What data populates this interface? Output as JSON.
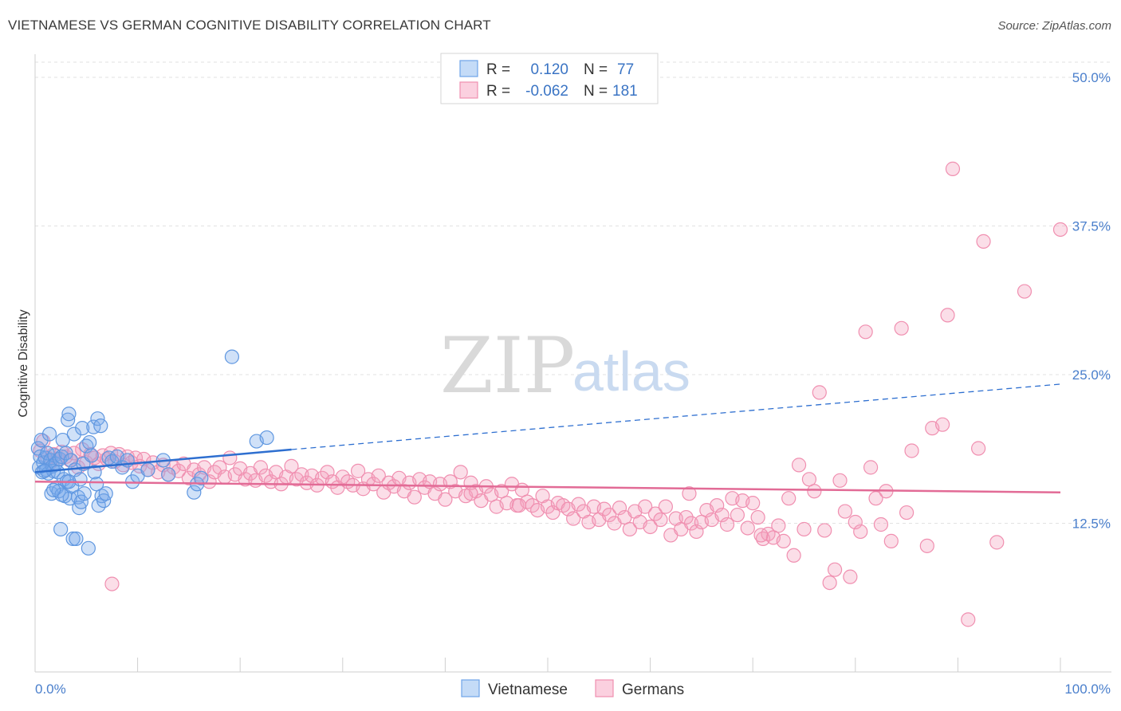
{
  "title": "VIETNAMESE VS GERMAN COGNITIVE DISABILITY CORRELATION CHART",
  "source": "Source: ZipAtlas.com",
  "watermark": {
    "zip": "ZIP",
    "atlas": "atlas"
  },
  "colors": {
    "blue": "#6ea3e8",
    "blue_line": "#2e6fd0",
    "pink": "#f08fb0",
    "pink_line": "#e26b96",
    "tick": "#4a7fcc"
  },
  "legend": {
    "rows": [
      {
        "r_label": "R =",
        "r_value": "0.120",
        "n_label": "N =",
        "n_value": "77"
      },
      {
        "r_label": "R =",
        "r_value": "-0.062",
        "n_label": "N =",
        "n_value": "181"
      }
    ]
  },
  "chart_data": {
    "type": "scatter",
    "ylabel": "Cognitive Disability",
    "xlim": [
      0,
      100
    ],
    "ylim": [
      0,
      50
    ],
    "y_ticks": [
      {
        "value": 12.5,
        "label": "12.5%"
      },
      {
        "value": 25.0,
        "label": "25.0%"
      },
      {
        "value": 37.5,
        "label": "37.5%"
      },
      {
        "value": 50.0,
        "label": "50.0%"
      }
    ],
    "x_ticks": [
      {
        "value": 0,
        "label": "0.0%"
      },
      {
        "value": 100,
        "label": "100.0%"
      }
    ],
    "legend_position": "bottom",
    "grid": true,
    "series": [
      {
        "name": "Vietnamese",
        "r": 0.12,
        "n": 77,
        "trend": {
          "x0": 0,
          "y0": 16.8,
          "x1": 25,
          "y1": 18.7,
          "dash_x1": 100,
          "dash_y1": 24.2
        },
        "points": [
          [
            0.3,
            18.8
          ],
          [
            0.4,
            17.2
          ],
          [
            0.5,
            18.1
          ],
          [
            0.6,
            19.5
          ],
          [
            0.7,
            16.8
          ],
          [
            0.8,
            17.6
          ],
          [
            1.0,
            18.0
          ],
          [
            1.1,
            17.0
          ],
          [
            1.2,
            18.4
          ],
          [
            1.3,
            16.7
          ],
          [
            1.4,
            20.0
          ],
          [
            1.5,
            17.8
          ],
          [
            1.6,
            15.0
          ],
          [
            1.7,
            17.3
          ],
          [
            1.8,
            16.9
          ],
          [
            1.9,
            18.2
          ],
          [
            2.0,
            17.5
          ],
          [
            2.1,
            15.5
          ],
          [
            2.2,
            16.8
          ],
          [
            2.3,
            15.2
          ],
          [
            2.4,
            17.9
          ],
          [
            2.5,
            12.0
          ],
          [
            2.6,
            18.1
          ],
          [
            2.7,
            19.5
          ],
          [
            2.8,
            16.2
          ],
          [
            2.9,
            14.8
          ],
          [
            3.0,
            18.4
          ],
          [
            3.1,
            16.0
          ],
          [
            3.2,
            21.2
          ],
          [
            3.3,
            21.7
          ],
          [
            3.4,
            14.6
          ],
          [
            3.5,
            17.8
          ],
          [
            3.6,
            15.6
          ],
          [
            3.7,
            11.2
          ],
          [
            3.8,
            20.0
          ],
          [
            3.9,
            17.0
          ],
          [
            4.0,
            11.2
          ],
          [
            4.2,
            14.7
          ],
          [
            4.3,
            13.8
          ],
          [
            4.4,
            16.2
          ],
          [
            4.5,
            14.3
          ],
          [
            4.6,
            20.5
          ],
          [
            4.7,
            17.5
          ],
          [
            4.8,
            15.0
          ],
          [
            5.0,
            19.0
          ],
          [
            5.2,
            10.4
          ],
          [
            5.3,
            19.3
          ],
          [
            5.5,
            18.2
          ],
          [
            5.7,
            20.6
          ],
          [
            5.8,
            16.8
          ],
          [
            6.0,
            15.8
          ],
          [
            6.1,
            21.3
          ],
          [
            6.2,
            14.0
          ],
          [
            6.4,
            20.7
          ],
          [
            6.5,
            14.8
          ],
          [
            6.7,
            14.4
          ],
          [
            6.9,
            15.0
          ],
          [
            7.2,
            18.0
          ],
          [
            7.5,
            17.7
          ],
          [
            8.0,
            18.1
          ],
          [
            8.5,
            17.2
          ],
          [
            9.0,
            17.8
          ],
          [
            9.5,
            16.0
          ],
          [
            10.0,
            16.5
          ],
          [
            11.0,
            17.0
          ],
          [
            12.5,
            17.8
          ],
          [
            13.0,
            16.6
          ],
          [
            15.5,
            15.1
          ],
          [
            15.8,
            15.8
          ],
          [
            16.2,
            16.3
          ],
          [
            19.2,
            26.5
          ],
          [
            21.6,
            19.4
          ],
          [
            22.6,
            19.7
          ],
          [
            3.3,
            16.0
          ],
          [
            2.6,
            14.9
          ],
          [
            1.8,
            15.3
          ],
          [
            0.9,
            16.9
          ]
        ]
      },
      {
        "name": "Germans",
        "r": -0.062,
        "n": 181,
        "trend": {
          "x0": 0,
          "y0": 16.0,
          "x1": 100,
          "y1": 15.1
        },
        "points": [
          [
            0.5,
            18.6
          ],
          [
            0.8,
            19.4
          ],
          [
            1.2,
            18.0
          ],
          [
            1.5,
            17.6
          ],
          [
            1.8,
            18.3
          ],
          [
            2.2,
            17.9
          ],
          [
            2.6,
            18.5
          ],
          [
            3.0,
            18.1
          ],
          [
            3.4,
            17.8
          ],
          [
            3.8,
            18.4
          ],
          [
            4.2,
            17.2
          ],
          [
            4.6,
            18.7
          ],
          [
            5.0,
            17.6
          ],
          [
            5.4,
            18.3
          ],
          [
            5.8,
            18.0
          ],
          [
            6.2,
            17.5
          ],
          [
            6.6,
            18.2
          ],
          [
            7.0,
            17.9
          ],
          [
            7.4,
            18.4
          ],
          [
            7.8,
            17.7
          ],
          [
            8.2,
            18.3
          ],
          [
            8.6,
            17.4
          ],
          [
            9.0,
            18.1
          ],
          [
            9.4,
            17.6
          ],
          [
            9.8,
            18.0
          ],
          [
            10.2,
            17.3
          ],
          [
            10.6,
            17.9
          ],
          [
            11.0,
            17.0
          ],
          [
            11.5,
            17.6
          ],
          [
            12.0,
            16.8
          ],
          [
            12.5,
            17.4
          ],
          [
            13.0,
            16.6
          ],
          [
            13.5,
            17.2
          ],
          [
            14.0,
            16.9
          ],
          [
            14.5,
            17.5
          ],
          [
            15.0,
            16.3
          ],
          [
            15.5,
            17.0
          ],
          [
            16.0,
            16.6
          ],
          [
            16.5,
            17.2
          ],
          [
            17.0,
            16.0
          ],
          [
            17.5,
            16.8
          ],
          [
            18.0,
            17.2
          ],
          [
            18.5,
            16.4
          ],
          [
            19.0,
            18.0
          ],
          [
            19.5,
            16.6
          ],
          [
            20.0,
            17.1
          ],
          [
            20.5,
            16.2
          ],
          [
            21.0,
            16.7
          ],
          [
            21.5,
            16.1
          ],
          [
            22.0,
            17.2
          ],
          [
            22.5,
            16.5
          ],
          [
            23.0,
            16.0
          ],
          [
            23.5,
            16.8
          ],
          [
            24.0,
            15.8
          ],
          [
            24.5,
            16.4
          ],
          [
            25.0,
            17.3
          ],
          [
            25.5,
            16.2
          ],
          [
            26.0,
            16.6
          ],
          [
            26.5,
            15.9
          ],
          [
            27.0,
            16.5
          ],
          [
            27.5,
            15.7
          ],
          [
            28.0,
            16.3
          ],
          [
            28.5,
            16.8
          ],
          [
            29.0,
            16.0
          ],
          [
            29.5,
            15.5
          ],
          [
            30.0,
            16.4
          ],
          [
            30.5,
            16.0
          ],
          [
            31.0,
            15.7
          ],
          [
            31.5,
            16.9
          ],
          [
            32.0,
            15.4
          ],
          [
            32.5,
            16.2
          ],
          [
            33.0,
            15.8
          ],
          [
            33.5,
            16.5
          ],
          [
            34.0,
            15.1
          ],
          [
            34.5,
            15.9
          ],
          [
            35.0,
            15.6
          ],
          [
            35.5,
            16.3
          ],
          [
            36.0,
            15.2
          ],
          [
            36.5,
            15.9
          ],
          [
            37.0,
            14.7
          ],
          [
            37.5,
            16.2
          ],
          [
            38.0,
            15.5
          ],
          [
            38.5,
            16.0
          ],
          [
            39.0,
            15.0
          ],
          [
            39.5,
            15.8
          ],
          [
            40.0,
            14.5
          ],
          [
            40.5,
            16.0
          ],
          [
            41.0,
            15.2
          ],
          [
            41.5,
            16.8
          ],
          [
            42.0,
            14.8
          ],
          [
            42.5,
            15.9
          ],
          [
            43.0,
            15.2
          ],
          [
            43.5,
            14.4
          ],
          [
            44.0,
            15.6
          ],
          [
            44.5,
            14.9
          ],
          [
            45.0,
            13.9
          ],
          [
            45.5,
            15.2
          ],
          [
            46.0,
            14.2
          ],
          [
            46.5,
            15.8
          ],
          [
            47.0,
            14.0
          ],
          [
            47.5,
            15.3
          ],
          [
            48.0,
            14.3
          ],
          [
            48.5,
            14.0
          ],
          [
            49.0,
            13.6
          ],
          [
            49.5,
            14.8
          ],
          [
            50.0,
            13.9
          ],
          [
            50.5,
            13.4
          ],
          [
            51.0,
            14.2
          ],
          [
            51.5,
            14.0
          ],
          [
            52.0,
            13.7
          ],
          [
            52.5,
            12.9
          ],
          [
            53.0,
            14.1
          ],
          [
            53.5,
            13.5
          ],
          [
            54.0,
            12.6
          ],
          [
            54.5,
            13.9
          ],
          [
            55.0,
            12.8
          ],
          [
            55.5,
            13.7
          ],
          [
            56.0,
            13.2
          ],
          [
            56.5,
            12.5
          ],
          [
            57.0,
            13.8
          ],
          [
            57.5,
            13.0
          ],
          [
            58.0,
            12.0
          ],
          [
            58.5,
            13.5
          ],
          [
            59.0,
            12.6
          ],
          [
            59.5,
            13.9
          ],
          [
            60.0,
            12.2
          ],
          [
            60.5,
            13.3
          ],
          [
            61.0,
            12.8
          ],
          [
            61.5,
            13.9
          ],
          [
            62.0,
            11.5
          ],
          [
            62.5,
            12.9
          ],
          [
            63.0,
            12.0
          ],
          [
            63.5,
            13.0
          ],
          [
            64.0,
            12.5
          ],
          [
            64.5,
            11.8
          ],
          [
            65.0,
            12.6
          ],
          [
            65.5,
            13.6
          ],
          [
            66.0,
            12.8
          ],
          [
            66.5,
            14.0
          ],
          [
            67.0,
            13.2
          ],
          [
            67.5,
            12.4
          ],
          [
            68.0,
            14.6
          ],
          [
            68.5,
            13.2
          ],
          [
            69.0,
            14.4
          ],
          [
            69.5,
            12.1
          ],
          [
            70.0,
            14.2
          ],
          [
            70.5,
            13.0
          ],
          [
            71.0,
            11.2
          ],
          [
            71.5,
            11.6
          ],
          [
            72.0,
            11.3
          ],
          [
            72.5,
            12.3
          ],
          [
            73.0,
            11.0
          ],
          [
            73.5,
            14.6
          ],
          [
            74.0,
            9.8
          ],
          [
            74.5,
            17.4
          ],
          [
            75.0,
            12.0
          ],
          [
            75.5,
            16.2
          ],
          [
            76.0,
            15.2
          ],
          [
            76.5,
            23.5
          ],
          [
            77.0,
            11.9
          ],
          [
            77.5,
            7.5
          ],
          [
            78.0,
            8.6
          ],
          [
            78.5,
            16.1
          ],
          [
            79.0,
            13.5
          ],
          [
            79.5,
            8.0
          ],
          [
            80.0,
            12.6
          ],
          [
            80.5,
            11.8
          ],
          [
            81.0,
            28.6
          ],
          [
            81.5,
            17.2
          ],
          [
            82.0,
            14.6
          ],
          [
            82.5,
            12.4
          ],
          [
            83.0,
            15.2
          ],
          [
            83.5,
            11.0
          ],
          [
            84.5,
            28.9
          ],
          [
            85.0,
            13.4
          ],
          [
            85.5,
            18.6
          ],
          [
            87.0,
            10.6
          ],
          [
            87.5,
            20.5
          ],
          [
            88.5,
            20.8
          ],
          [
            89.0,
            30.0
          ],
          [
            89.5,
            42.3
          ],
          [
            91.0,
            4.4
          ],
          [
            92.0,
            18.8
          ],
          [
            92.5,
            36.2
          ],
          [
            93.8,
            10.9
          ],
          [
            96.5,
            32.0
          ],
          [
            100.0,
            37.2
          ],
          [
            70.8,
            11.5
          ],
          [
            63.8,
            15.0
          ],
          [
            42.5,
            15.0
          ],
          [
            47.2,
            14.0
          ],
          [
            7.5,
            7.4
          ]
        ]
      }
    ]
  },
  "bottom_legend": [
    {
      "label": "Vietnamese"
    },
    {
      "label": "Germans"
    }
  ]
}
